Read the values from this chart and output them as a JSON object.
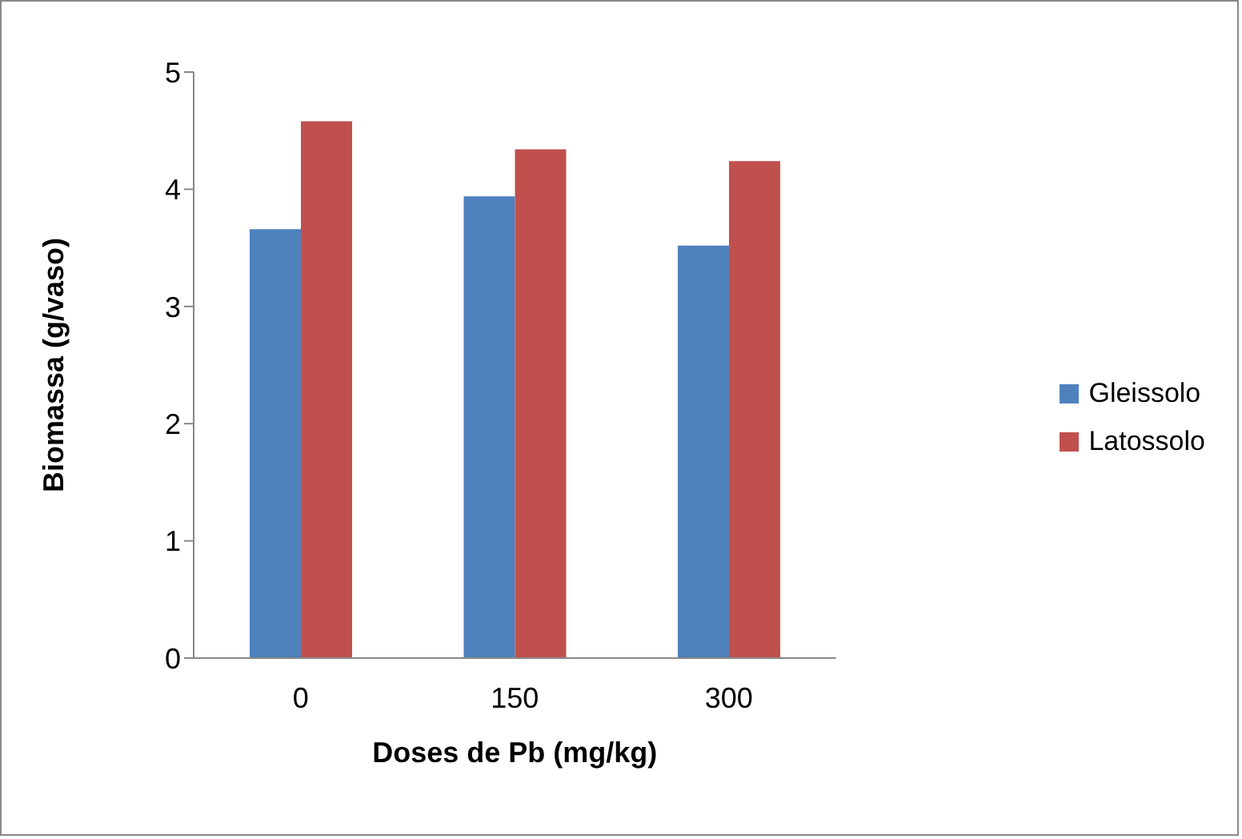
{
  "chart_data": {
    "type": "bar",
    "xlabel": "Doses de Pb (mg/kg)",
    "ylabel": "Biomassa (g/vaso)",
    "categories": [
      "0",
      "150",
      "300"
    ],
    "series": [
      {
        "name": "Gleissolo",
        "color": "#4f81bd",
        "values": [
          3.66,
          3.94,
          3.52
        ]
      },
      {
        "name": "Latossolo",
        "color": "#c0504d",
        "values": [
          4.58,
          4.34,
          4.24
        ]
      }
    ],
    "ylim": [
      0,
      5
    ],
    "yticks": [
      0,
      1,
      2,
      3,
      4,
      5
    ],
    "grid": false,
    "legend": "right"
  }
}
